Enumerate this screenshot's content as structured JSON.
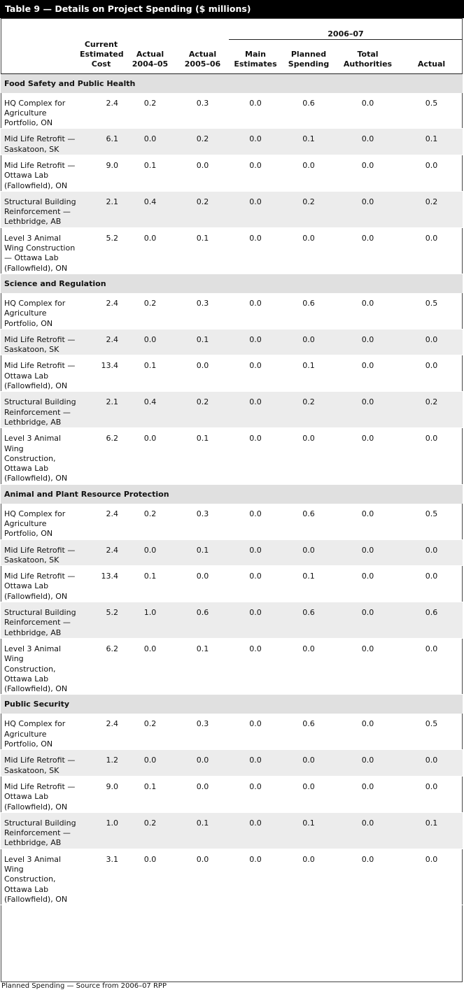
{
  "title": "Table 9 — Details on Project Spending ($ millions)",
  "group_header": "2006–07",
  "columns": [
    {
      "key": "project",
      "label": ""
    },
    {
      "key": "cost",
      "label": "Current Estimated Cost"
    },
    {
      "key": "a0405",
      "label": "Actual 2004–05"
    },
    {
      "key": "a0506",
      "label": "Actual 2005–06"
    },
    {
      "key": "main",
      "label": "Main Estimates"
    },
    {
      "key": "planned",
      "label": "Planned Spending"
    },
    {
      "key": "total",
      "label": "Total Authorities"
    },
    {
      "key": "actual",
      "label": "Actual"
    }
  ],
  "sections": [
    {
      "name": "Food Safety and Public Health",
      "rows": [
        {
          "project": "HQ Complex for Agriculture Portfolio, ON",
          "values": [
            "2.4",
            "0.2",
            "0.3",
            "0.0",
            "0.6",
            "0.0",
            "0.5"
          ]
        },
        {
          "project": "Mid Life Retrofit — Saskatoon, SK",
          "values": [
            "6.1",
            "0.0",
            "0.2",
            "0.0",
            "0.1",
            "0.0",
            "0.1"
          ]
        },
        {
          "project": "Mid Life Retrofit — Ottawa Lab (Fallowfield), ON",
          "values": [
            "9.0",
            "0.1",
            "0.0",
            "0.0",
            "0.0",
            "0.0",
            "0.0"
          ]
        },
        {
          "project": "Structural Building Reinforcement — Lethbridge, AB",
          "values": [
            "2.1",
            "0.4",
            "0.2",
            "0.0",
            "0.2",
            "0.0",
            "0.2"
          ]
        },
        {
          "project": "Level 3 Animal Wing Construction — Ottawa Lab (Fallowfield), ON",
          "values": [
            "5.2",
            "0.0",
            "0.1",
            "0.0",
            "0.0",
            "0.0",
            "0.0"
          ]
        }
      ]
    },
    {
      "name": "Science and Regulation",
      "rows": [
        {
          "project": "HQ Complex for Agriculture Portfolio, ON",
          "values": [
            "2.4",
            "0.2",
            "0.3",
            "0.0",
            "0.6",
            "0.0",
            "0.5"
          ]
        },
        {
          "project": "Mid Life Retrofit — Saskatoon, SK",
          "values": [
            "2.4",
            "0.0",
            "0.1",
            "0.0",
            "0.0",
            "0.0",
            "0.0"
          ]
        },
        {
          "project": "Mid Life Retrofit — Ottawa Lab (Fallowfield), ON",
          "values": [
            "13.4",
            "0.1",
            "0.0",
            "0.0",
            "0.1",
            "0.0",
            "0.0"
          ]
        },
        {
          "project": "Structural Building Reinforcement — Lethbridge, AB",
          "values": [
            "2.1",
            "0.4",
            "0.2",
            "0.0",
            "0.2",
            "0.0",
            "0.2"
          ]
        },
        {
          "project": "Level 3 Animal Wing Construction, Ottawa Lab (Fallowfield), ON",
          "values": [
            "6.2",
            "0.0",
            "0.1",
            "0.0",
            "0.0",
            "0.0",
            "0.0"
          ]
        }
      ]
    },
    {
      "name": "Animal and Plant Resource Protection",
      "rows": [
        {
          "project": "HQ Complex for Agriculture Portfolio, ON",
          "values": [
            "2.4",
            "0.2",
            "0.3",
            "0.0",
            "0.6",
            "0.0",
            "0.5"
          ]
        },
        {
          "project": "Mid Life Retrofit — Saskatoon, SK",
          "values": [
            "2.4",
            "0.0",
            "0.1",
            "0.0",
            "0.0",
            "0.0",
            "0.0"
          ]
        },
        {
          "project": "Mid Life Retrofit — Ottawa Lab (Fallowfield), ON",
          "values": [
            "13.4",
            "0.1",
            "0.0",
            "0.0",
            "0.1",
            "0.0",
            "0.0"
          ]
        },
        {
          "project": "Structural Building Reinforcement — Lethbridge, AB",
          "values": [
            "5.2",
            "1.0",
            "0.6",
            "0.0",
            "0.6",
            "0.0",
            "0.6"
          ]
        },
        {
          "project": "Level 3 Animal Wing Construction, Ottawa Lab (Fallowfield), ON",
          "values": [
            "6.2",
            "0.0",
            "0.1",
            "0.0",
            "0.0",
            "0.0",
            "0.0"
          ]
        }
      ]
    },
    {
      "name": "Public Security",
      "rows": [
        {
          "project": "HQ Complex for Agriculture Portfolio, ON",
          "values": [
            "2.4",
            "0.2",
            "0.3",
            "0.0",
            "0.6",
            "0.0",
            "0.5"
          ]
        },
        {
          "project": "Mid Life Retrofit — Saskatoon, SK",
          "values": [
            "1.2",
            "0.0",
            "0.0",
            "0.0",
            "0.0",
            "0.0",
            "0.0"
          ]
        },
        {
          "project": "Mid Life Retrofit — Ottawa Lab (Fallowfield), ON",
          "values": [
            "9.0",
            "0.1",
            "0.0",
            "0.0",
            "0.0",
            "0.0",
            "0.0"
          ]
        },
        {
          "project": "Structural Building Reinforcement — Lethbridge, AB",
          "values": [
            "1.0",
            "0.2",
            "0.1",
            "0.0",
            "0.1",
            "0.0",
            "0.1"
          ]
        },
        {
          "project": "Level 3 Animal Wing Construction, Ottawa Lab (Fallowfield), ON",
          "values": [
            "3.1",
            "0.0",
            "0.0",
            "0.0",
            "0.0",
            "0.0",
            "0.0"
          ]
        }
      ]
    }
  ],
  "footer": "Planned Spending — Source from 2006–07 RPP"
}
